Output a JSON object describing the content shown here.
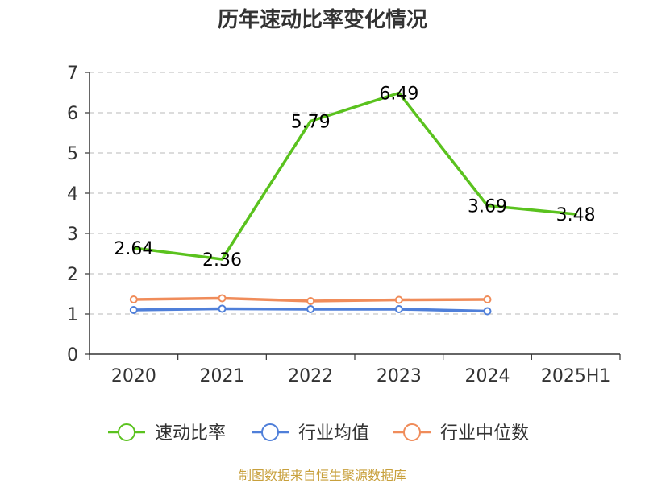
{
  "chart_data": {
    "type": "line",
    "title": "历年速动比率变化情况",
    "categories": [
      "2020",
      "2021",
      "2022",
      "2023",
      "2024",
      "2025H1"
    ],
    "ylim": [
      0,
      7
    ],
    "yticks": [
      0,
      1,
      2,
      3,
      4,
      5,
      6,
      7
    ],
    "grid": true,
    "legend_position": "bottom",
    "series": [
      {
        "name": "速动比率",
        "color": "#5ac21e",
        "values": [
          2.64,
          2.36,
          5.79,
          6.49,
          3.69,
          3.48
        ],
        "labels": [
          "2.64",
          "2.36",
          "5.79",
          "6.49",
          "3.69",
          "3.48"
        ],
        "show_markers": false
      },
      {
        "name": "行业均值",
        "color": "#4f7fd9",
        "values": [
          1.1,
          1.13,
          1.12,
          1.12,
          1.07,
          null
        ],
        "show_markers": true
      },
      {
        "name": "行业中位数",
        "color": "#f08c5a",
        "values": [
          1.36,
          1.39,
          1.32,
          1.35,
          1.36,
          null
        ],
        "show_markers": true
      }
    ],
    "source": "制图数据来自恒生聚源数据库"
  }
}
